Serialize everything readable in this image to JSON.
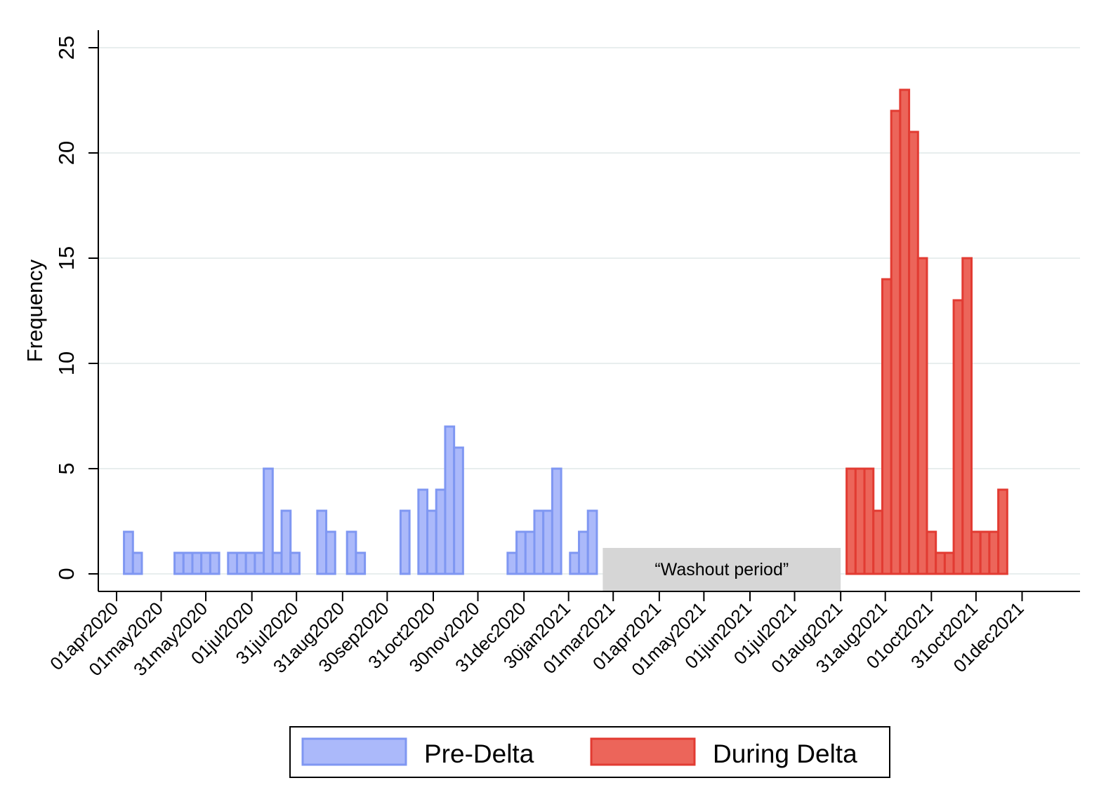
{
  "chart_data": {
    "type": "bar",
    "ylabel": "Frequency",
    "xlabel": "",
    "ylim": [
      0,
      25
    ],
    "y_ticks": [
      0,
      5,
      10,
      15,
      20,
      25
    ],
    "grid": true,
    "legend_placement": "bottom",
    "x_tick_labels": [
      "01apr2020",
      "01may2020",
      "31may2020",
      "01jul2020",
      "31jul2020",
      "31aug2020",
      "30sep2020",
      "31oct2020",
      "30nov2020",
      "31dec2020",
      "30jan2021",
      "01mar2021",
      "01apr2021",
      "01may2021",
      "01jun2021",
      "01jul2021",
      "01aug2021",
      "31aug2021",
      "01oct2021",
      "31oct2021",
      "01dec2021"
    ],
    "x_tick_dates": [
      "2020-04-01",
      "2020-05-01",
      "2020-05-31",
      "2020-07-01",
      "2020-07-31",
      "2020-08-31",
      "2020-09-30",
      "2020-10-31",
      "2020-11-30",
      "2020-12-31",
      "2021-01-30",
      "2021-03-01",
      "2021-04-01",
      "2021-05-01",
      "2021-06-01",
      "2021-07-01",
      "2021-08-01",
      "2021-08-31",
      "2021-10-01",
      "2021-10-31",
      "2021-12-01"
    ],
    "bin_width_days": 6,
    "annotation": {
      "label": "“Washout period”",
      "start_date": "2021-02-22",
      "end_date": "2021-08-01"
    },
    "series": [
      {
        "name": "Pre-Delta",
        "color": "#abb9fa",
        "stroke": "#7f97f2",
        "bins": [
          {
            "start": "2020-04-06",
            "value": 2
          },
          {
            "start": "2020-04-12",
            "value": 1
          },
          {
            "start": "2020-05-10",
            "value": 1
          },
          {
            "start": "2020-05-16",
            "value": 1
          },
          {
            "start": "2020-05-22",
            "value": 1
          },
          {
            "start": "2020-05-28",
            "value": 1
          },
          {
            "start": "2020-06-03",
            "value": 1
          },
          {
            "start": "2020-06-15",
            "value": 1
          },
          {
            "start": "2020-06-21",
            "value": 1
          },
          {
            "start": "2020-06-27",
            "value": 1
          },
          {
            "start": "2020-07-03",
            "value": 1
          },
          {
            "start": "2020-07-09",
            "value": 5
          },
          {
            "start": "2020-07-15",
            "value": 1
          },
          {
            "start": "2020-07-21",
            "value": 3
          },
          {
            "start": "2020-07-27",
            "value": 1
          },
          {
            "start": "2020-08-14",
            "value": 3
          },
          {
            "start": "2020-08-20",
            "value": 2
          },
          {
            "start": "2020-09-03",
            "value": 2
          },
          {
            "start": "2020-09-09",
            "value": 1
          },
          {
            "start": "2020-10-09",
            "value": 3
          },
          {
            "start": "2020-10-21",
            "value": 4
          },
          {
            "start": "2020-10-27",
            "value": 3
          },
          {
            "start": "2020-11-02",
            "value": 4
          },
          {
            "start": "2020-11-08",
            "value": 7
          },
          {
            "start": "2020-11-14",
            "value": 6
          },
          {
            "start": "2020-12-20",
            "value": 1
          },
          {
            "start": "2020-12-26",
            "value": 2
          },
          {
            "start": "2021-01-01",
            "value": 2
          },
          {
            "start": "2021-01-07",
            "value": 3
          },
          {
            "start": "2021-01-13",
            "value": 3
          },
          {
            "start": "2021-01-19",
            "value": 5
          },
          {
            "start": "2021-01-31",
            "value": 1
          },
          {
            "start": "2021-02-06",
            "value": 2
          },
          {
            "start": "2021-02-12",
            "value": 3
          }
        ]
      },
      {
        "name": "During Delta",
        "color": "#ec655a",
        "stroke": "#e23b32",
        "bins": [
          {
            "start": "2021-08-05",
            "value": 5
          },
          {
            "start": "2021-08-11",
            "value": 5
          },
          {
            "start": "2021-08-17",
            "value": 5
          },
          {
            "start": "2021-08-23",
            "value": 3
          },
          {
            "start": "2021-08-29",
            "value": 14
          },
          {
            "start": "2021-09-04",
            "value": 22
          },
          {
            "start": "2021-09-10",
            "value": 23
          },
          {
            "start": "2021-09-16",
            "value": 21
          },
          {
            "start": "2021-09-22",
            "value": 15
          },
          {
            "start": "2021-09-28",
            "value": 2
          },
          {
            "start": "2021-10-04",
            "value": 1
          },
          {
            "start": "2021-10-10",
            "value": 1
          },
          {
            "start": "2021-10-16",
            "value": 13
          },
          {
            "start": "2021-10-22",
            "value": 15
          },
          {
            "start": "2021-10-28",
            "value": 2
          },
          {
            "start": "2021-11-03",
            "value": 2
          },
          {
            "start": "2021-11-09",
            "value": 2
          },
          {
            "start": "2021-11-15",
            "value": 4
          }
        ]
      }
    ]
  }
}
